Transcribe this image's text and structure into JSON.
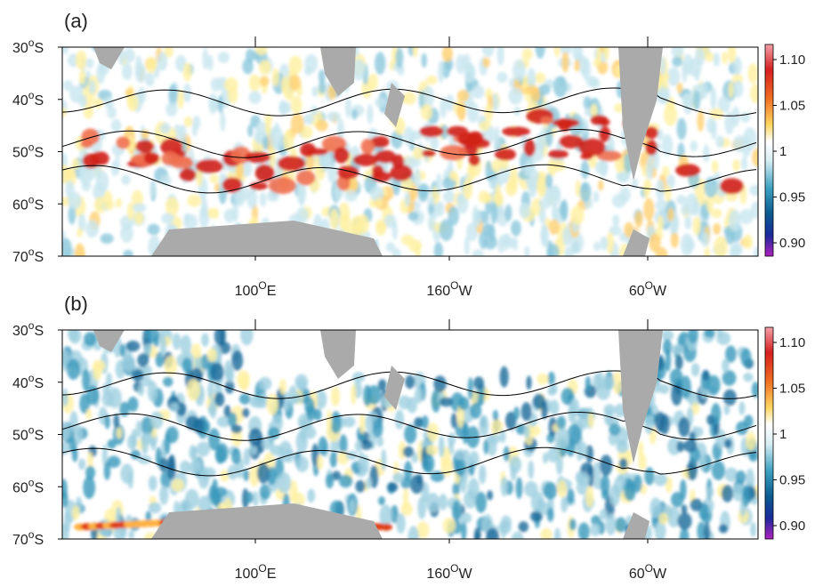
{
  "panels": [
    {
      "label": "(a)"
    },
    {
      "label": "(b)"
    }
  ],
  "lat_ticks": [
    {
      "deg": "30",
      "sup": "o",
      "hem": "S"
    },
    {
      "deg": "40",
      "sup": "o",
      "hem": "S"
    },
    {
      "deg": "50",
      "sup": "o",
      "hem": "S"
    },
    {
      "deg": "60",
      "sup": "o",
      "hem": "S"
    },
    {
      "deg": "70",
      "sup": "o",
      "hem": "S"
    }
  ],
  "lon_ticks": [
    {
      "deg": "100",
      "sup": "O",
      "hem": "E"
    },
    {
      "deg": "160",
      "sup": "O",
      "hem": "W"
    },
    {
      "deg": "60",
      "sup": "O",
      "hem": "W"
    }
  ],
  "colorbar_ticks": [
    "1.10",
    "1.05",
    "1",
    "0.95",
    "0.90"
  ]
}
